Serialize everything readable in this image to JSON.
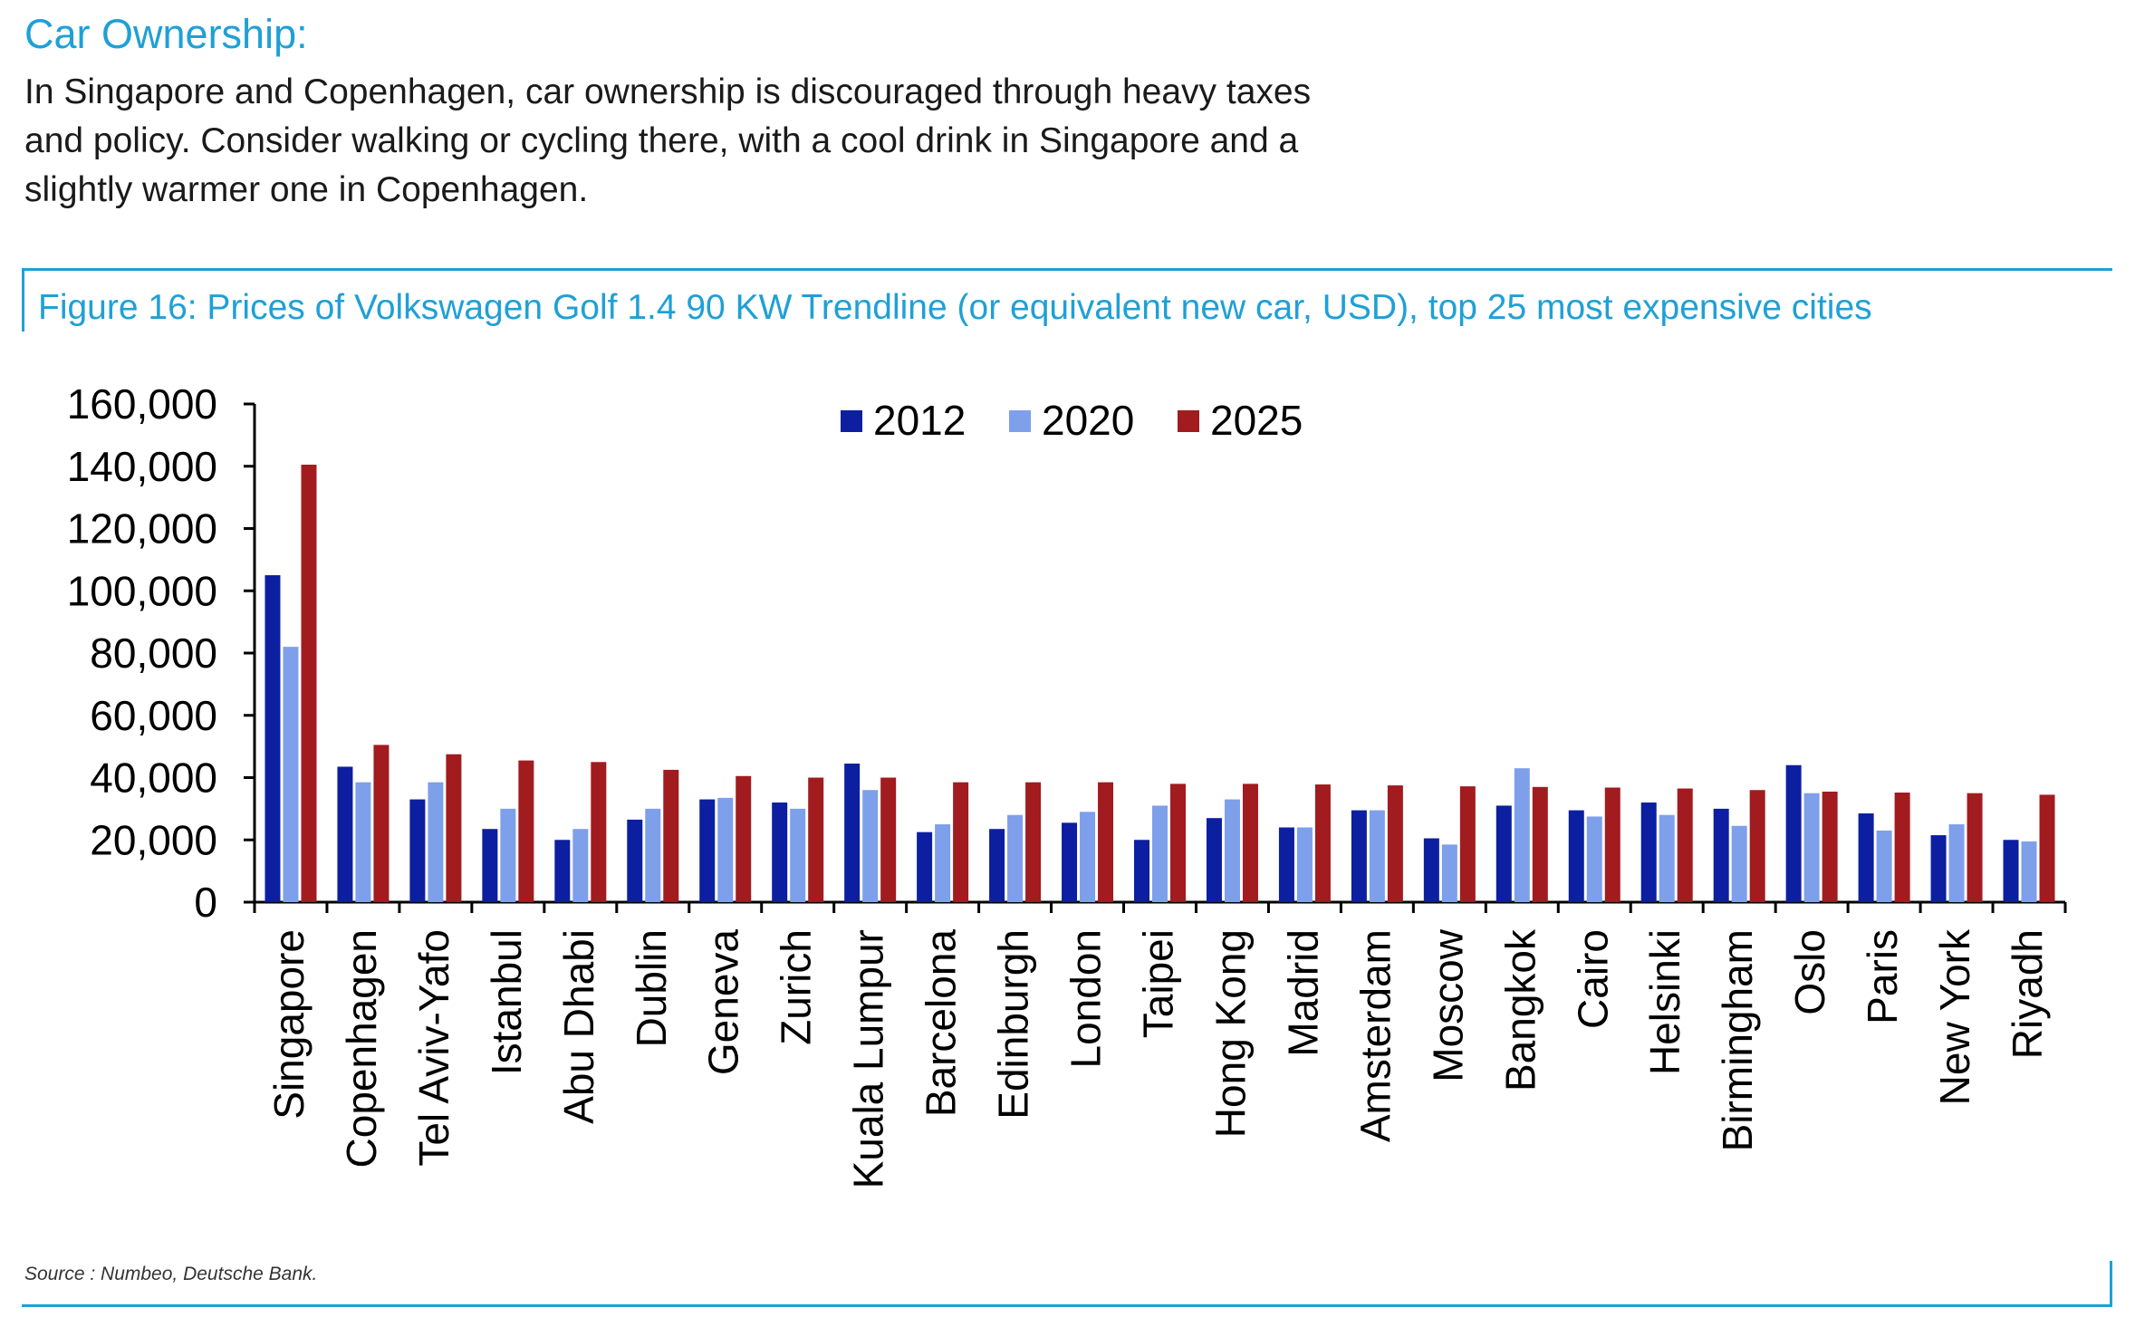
{
  "header": {
    "section_title": "Car Ownership:",
    "intro_lines": [
      "In Singapore and Copenhagen, car ownership is discouraged through heavy taxes",
      "and policy. Consider walking or cycling there, with a cool drink in Singapore and a",
      "slightly warmer one in Copenhagen."
    ]
  },
  "figure": {
    "title": "Figure 16: Prices of Volkswagen Golf 1.4 90 KW Trendline (or equivalent new car, USD), top 25 most expensive cities",
    "source": "Source : Numbeo, Deutsche Bank."
  },
  "colors": {
    "accent": "#1fa0d6",
    "s2012": "#0c1fa0",
    "s2020": "#7e9fea",
    "s2025": "#a11b1f"
  },
  "chart_data": {
    "type": "bar",
    "title": "Figure 16: Prices of Volkswagen Golf 1.4 90 KW Trendline (or equivalent new car, USD), top 25 most expensive cities",
    "xlabel": "",
    "ylabel": "",
    "ylim": [
      0,
      160000
    ],
    "yticks": [
      0,
      20000,
      40000,
      60000,
      80000,
      100000,
      120000,
      140000,
      160000
    ],
    "ytick_labels": [
      "0",
      "20,000",
      "40,000",
      "60,000",
      "80,000",
      "100,000",
      "120,000",
      "140,000",
      "160,000"
    ],
    "grid": false,
    "legend_position": "top-center",
    "categories": [
      "Singapore",
      "Copenhagen",
      "Tel Aviv-Yafo",
      "Istanbul",
      "Abu Dhabi",
      "Dublin",
      "Geneva",
      "Zurich",
      "Kuala Lumpur",
      "Barcelona",
      "Edinburgh",
      "London",
      "Taipei",
      "Hong Kong",
      "Madrid",
      "Amsterdam",
      "Moscow",
      "Bangkok",
      "Cairo",
      "Helsinki",
      "Birmingham",
      "Oslo",
      "Paris",
      "New York",
      "Riyadh"
    ],
    "series": [
      {
        "name": "2012",
        "color": "#0c1fa0",
        "values": [
          105000,
          43500,
          33000,
          23500,
          20000,
          26500,
          33000,
          32000,
          44500,
          22500,
          23500,
          25500,
          20000,
          27000,
          24000,
          29500,
          20500,
          31000,
          29500,
          32000,
          30000,
          44000,
          28500,
          21500,
          20000
        ]
      },
      {
        "name": "2020",
        "color": "#7e9fea",
        "values": [
          82000,
          38500,
          38500,
          30000,
          23500,
          30000,
          33500,
          30000,
          36000,
          25000,
          28000,
          29000,
          31000,
          33000,
          24000,
          29500,
          18500,
          43000,
          27500,
          28000,
          24500,
          35000,
          23000,
          25000,
          19500
        ]
      },
      {
        "name": "2025",
        "color": "#a11b1f",
        "values": [
          140500,
          50500,
          47500,
          45500,
          45000,
          42500,
          40500,
          40000,
          40000,
          38500,
          38500,
          38500,
          38000,
          38000,
          37800,
          37500,
          37200,
          37000,
          36800,
          36500,
          36000,
          35500,
          35200,
          35000,
          34500
        ]
      }
    ]
  }
}
